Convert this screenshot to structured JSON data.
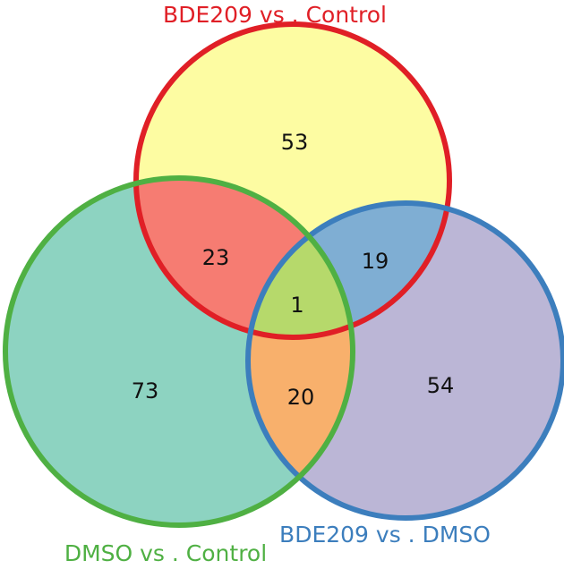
{
  "sets": {
    "top": {
      "label": "BDE209 vs . Control",
      "color": "#e01f26",
      "fill": "#fdfca2"
    },
    "left": {
      "label": "DMSO vs . Control",
      "color": "#4fb043",
      "fill": "#8dd3c1"
    },
    "right": {
      "label": "BDE209 vs . DMSO",
      "color": "#3c7ebd",
      "fill": "#bbb6d6"
    }
  },
  "regions": {
    "top_only": "53",
    "left_only": "73",
    "right_only": "54",
    "top_left": "23",
    "top_right": "19",
    "left_right": "20",
    "all_three": "1"
  },
  "region_colors": {
    "top_left": "#f67c72",
    "top_right": "#7faed3",
    "left_right": "#f8b06c",
    "all_three": "#b6d96b"
  }
}
